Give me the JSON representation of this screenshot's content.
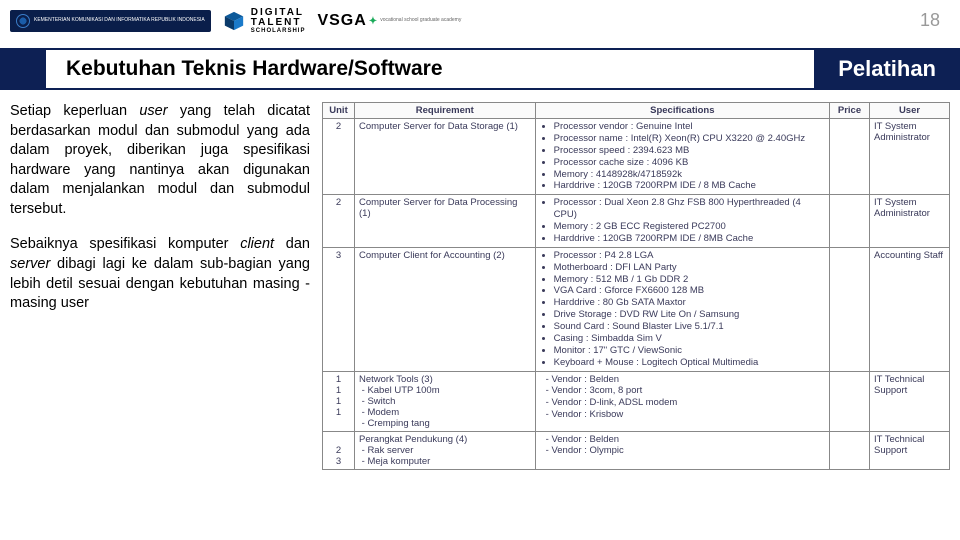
{
  "page_number": "18",
  "title_main": "Kebutuhan Teknis Hardware/Software",
  "title_right": "Pelatihan",
  "logo1_text": "KEMENTERIAN KOMUNIKASI DAN INFORMATIKA REPUBLIK INDONESIA",
  "logo2_line1": "DIGITAL",
  "logo2_line2": "TALENT",
  "logo2_line3": "SCHOLARSHIP",
  "logo3_text": "VSGA",
  "logo3_sub": "vocational school graduate academy",
  "para1_a": "Setiap keperluan ",
  "para1_b": "user",
  "para1_c": " yang telah dicatat berdasarkan modul dan submodul yang ada dalam proyek, diberikan juga spesifikasi hardware yang nantinya akan digunakan dalam menjalankan modul dan submodul tersebut.",
  "para2_a": "Sebaiknya spesifikasi komputer ",
  "para2_b": "client",
  "para2_c": " dan ",
  "para2_d": "server",
  "para2_e": " dibagi lagi ke dalam sub-bagian yang lebih detil sesuai dengan kebutuhan masing -masing user",
  "table": {
    "headers": [
      "Unit",
      "Requirement",
      "Specifications",
      "Price",
      "User"
    ],
    "rows": [
      {
        "unit": "2",
        "req": "Computer Server for Data Storage (1)",
        "specs": [
          "Processor vendor : Genuine Intel",
          "Processor name : Intel(R) Xeon(R) CPU X3220 @ 2.40GHz",
          "Processor speed : 2394.623 MB",
          "Processor cache size : 4096 KB",
          "Memory : 4148928k/4718592k",
          "Harddrive : 120GB 7200RPM IDE / 8 MB Cache"
        ],
        "user": "IT System Administrator"
      },
      {
        "unit": "2",
        "req": "Computer Server for Data Processing (1)",
        "specs": [
          "Processor : Dual Xeon 2.8 Ghz FSB 800 Hyperthreaded (4 CPU)",
          "Memory : 2 GB ECC Registered PC2700",
          "Harddrive : 120GB 7200RPM IDE / 8MB Cache"
        ],
        "user": "IT System Administrator"
      },
      {
        "unit": "3",
        "req": "Computer Client for Accounting (2)",
        "specs": [
          "Processor : P4 2.8 LGA",
          "Motherboard : DFI LAN Party",
          "Memory : 512 MB / 1 Gb DDR 2",
          "VGA Card : Gforce FX6600 128 MB",
          "Harddrive : 80 Gb SATA Maxtor",
          "Drive Storage : DVD RW Lite On / Samsung",
          "Sound Card : Sound Blaster Live 5.1/7.1",
          "Casing : Simbadda Sim V",
          "Monitor : 17\" GTC / ViewSonic",
          "Keyboard + Mouse : Logitech Optical Multimedia"
        ],
        "user": "Accounting Staff"
      },
      {
        "unit_multi": [
          "1",
          "1",
          "1",
          "1"
        ],
        "req": "Network Tools (3)",
        "req_items": [
          "Kabel UTP 100m",
          "Switch",
          "Modem",
          "Cremping tang"
        ],
        "specs_dash": [
          "Vendor : Belden",
          "Vendor : 3com, 8 port",
          "Vendor : D-link, ADSL modem",
          "Vendor : Krisbow"
        ],
        "user": "IT Technical Support"
      },
      {
        "unit_multi": [
          "",
          "2",
          "3"
        ],
        "req": "Perangkat Pendukung (4)",
        "req_items": [
          "Rak server",
          "Meja komputer"
        ],
        "specs_dash": [
          "Vendor : Belden",
          "Vendor : Olympic"
        ],
        "user": "IT Technical Support"
      }
    ]
  }
}
